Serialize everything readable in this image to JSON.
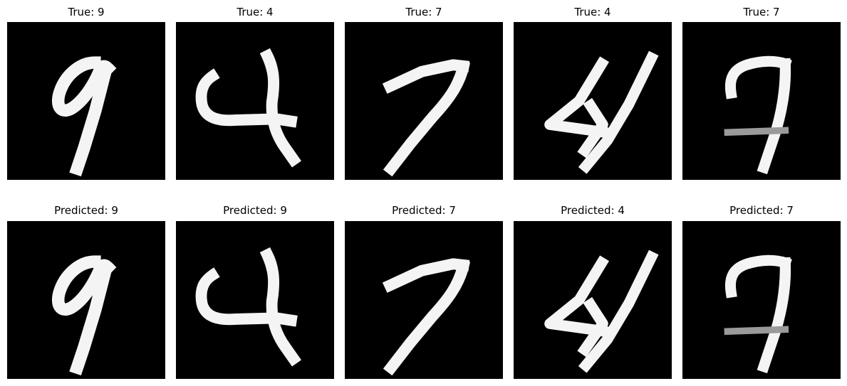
{
  "figure": {
    "background_color": "#ffffff",
    "image_background_color": "#000000",
    "stroke_color": "#f4f4f4",
    "rows": [
      {
        "row_name": "true-labels",
        "panels": [
          {
            "title": "True: 9",
            "digit": "9",
            "digit_icon": "digit-9-drawing"
          },
          {
            "title": "True: 4",
            "digit": "4",
            "digit_icon": "digit-4-drawing"
          },
          {
            "title": "True: 7",
            "digit": "7",
            "digit_icon": "digit-7-drawing"
          },
          {
            "title": "True: 4",
            "digit": "4",
            "digit_icon": "digit-4-slanted-drawing"
          },
          {
            "title": "True: 7",
            "digit": "7",
            "digit_icon": "digit-7-crossed-drawing"
          }
        ]
      },
      {
        "row_name": "predicted-labels",
        "panels": [
          {
            "title": "Predicted: 9",
            "digit": "9",
            "digit_icon": "digit-9-drawing"
          },
          {
            "title": "Predicted: 9",
            "digit": "4",
            "digit_icon": "digit-4-drawing"
          },
          {
            "title": "Predicted: 7",
            "digit": "7",
            "digit_icon": "digit-7-drawing"
          },
          {
            "title": "Predicted: 4",
            "digit": "4",
            "digit_icon": "digit-4-slanted-drawing"
          },
          {
            "title": "Predicted: 7",
            "digit": "7",
            "digit_icon": "digit-7-crossed-drawing"
          }
        ]
      }
    ]
  }
}
